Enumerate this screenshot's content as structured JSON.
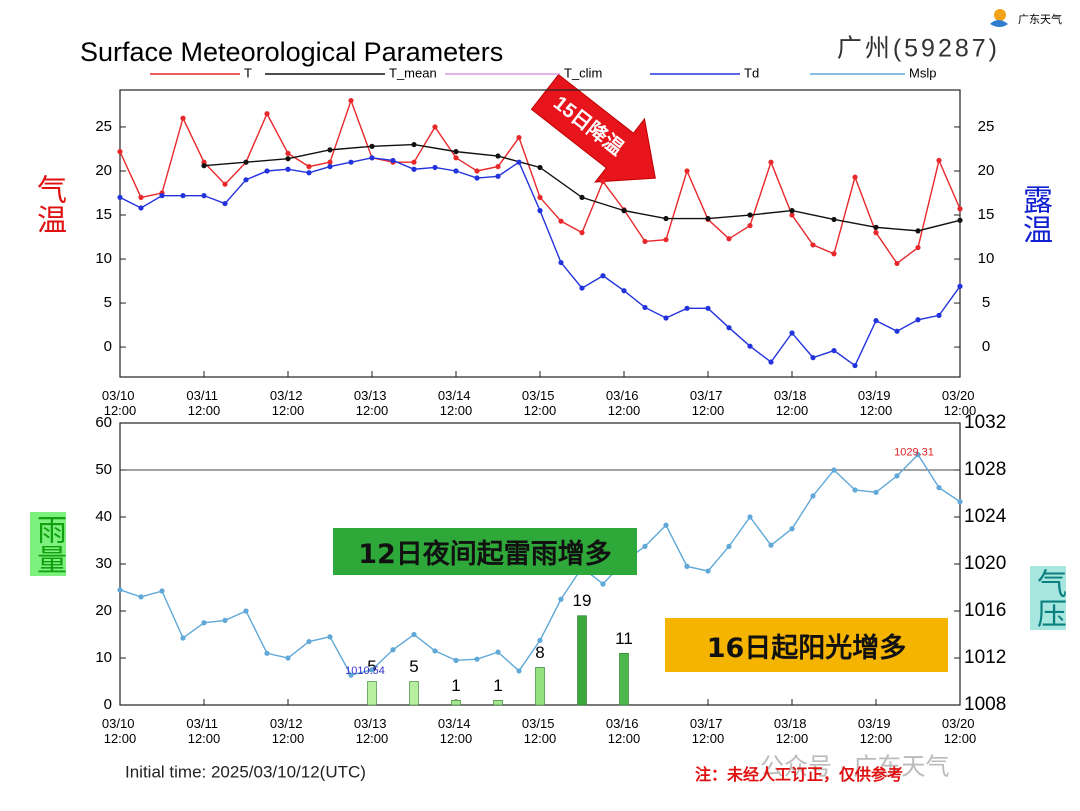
{
  "title": "Surface Meteorological Parameters",
  "station": "广州(59287)",
  "logo": "广东天气",
  "initial_time": "Initial time: 2025/03/10/12(UTC)",
  "note": "注：未经人工订正，仅供参考",
  "watermark": "公众号 · 广东天气",
  "callouts": [
    "15日降温",
    "12日夜间起雷雨增多",
    "16日起阳光增多"
  ],
  "chart_data": [
    {
      "type": "line",
      "ylabel": "气温",
      "y2label": "露温",
      "xlim": [
        "03/10 12:00",
        "03/20 12:00"
      ],
      "xticks": [
        "03/10 12:00",
        "03/11 12:00",
        "03/12 12:00",
        "03/13 12:00",
        "03/14 12:00",
        "03/15 12:00",
        "03/16 12:00",
        "03/17 12:00",
        "03/18 12:00",
        "03/19 12:00",
        "03/20 12:00"
      ],
      "ylim": [
        -3.4,
        29.2
      ],
      "yticks": [
        0,
        5,
        10,
        15,
        20,
        25
      ],
      "y2lim": [
        -3.4,
        29.2
      ],
      "y2ticks": [
        0,
        5,
        10,
        15,
        20,
        25
      ],
      "series": [
        {
          "name": "T",
          "color": "#e8282b",
          "x": [
            "03/10 12:00",
            "03/10 18:00",
            "03/11 00:00",
            "03/11 06:00",
            "03/11 12:00",
            "03/11 18:00",
            "03/12 00:00",
            "03/12 06:00",
            "03/12 12:00",
            "03/12 18:00",
            "03/13 00:00",
            "03/13 06:00",
            "03/13 12:00",
            "03/13 18:00",
            "03/14 00:00",
            "03/14 06:00",
            "03/14 12:00",
            "03/14 18:00",
            "03/15 00:00",
            "03/15 06:00",
            "03/15 12:00",
            "03/15 18:00",
            "03/16 00:00",
            "03/16 06:00",
            "03/16 12:00",
            "03/16 18:00",
            "03/17 00:00",
            "03/17 06:00",
            "03/17 12:00",
            "03/17 18:00",
            "03/18 00:00",
            "03/18 06:00",
            "03/18 12:00",
            "03/18 18:00",
            "03/19 00:00",
            "03/19 06:00",
            "03/19 12:00",
            "03/19 18:00",
            "03/20 00:00",
            "03/20 06:00",
            "03/20 12:00"
          ],
          "values": [
            22.2,
            17,
            17.5,
            26,
            21,
            18.5,
            21,
            26.5,
            22,
            20.5,
            21,
            28,
            21.5,
            21,
            21,
            25,
            21.5,
            20,
            20.5,
            23.8,
            17,
            14.3,
            13,
            18.8,
            15.6,
            12,
            12.2,
            20,
            14.5,
            12.3,
            13.8,
            21,
            15,
            11.6,
            10.6,
            19.3,
            13,
            9.5,
            11.3,
            21.2,
            15.7
          ]
        },
        {
          "name": "T_mean",
          "color": "#111111",
          "x": [
            "03/11 12:00",
            "03/12 00:00",
            "03/12 12:00",
            "03/13 00:00",
            "03/13 12:00",
            "03/14 00:00",
            "03/14 12:00",
            "03/15 00:00",
            "03/15 12:00",
            "03/16 00:00",
            "03/16 12:00",
            "03/17 00:00",
            "03/17 12:00",
            "03/18 00:00",
            "03/18 12:00",
            "03/19 00:00",
            "03/19 12:00",
            "03/20 00:00",
            "03/20 12:00"
          ],
          "values": [
            20.6,
            21,
            21.4,
            22.4,
            22.8,
            23,
            22.2,
            21.7,
            20.4,
            17,
            15.5,
            14.6,
            14.6,
            15,
            15.5,
            14.5,
            13.6,
            13.2,
            14.4
          ]
        },
        {
          "name": "T_clim",
          "color": "#d99be0",
          "x": [],
          "values": []
        },
        {
          "name": "Td",
          "color": "#2233dd",
          "axis": "y2",
          "x": [
            "03/10 12:00",
            "03/10 18:00",
            "03/11 00:00",
            "03/11 06:00",
            "03/11 12:00",
            "03/11 18:00",
            "03/12 00:00",
            "03/12 06:00",
            "03/12 12:00",
            "03/12 18:00",
            "03/13 00:00",
            "03/13 06:00",
            "03/13 12:00",
            "03/13 18:00",
            "03/14 00:00",
            "03/14 06:00",
            "03/14 12:00",
            "03/14 18:00",
            "03/15 00:00",
            "03/15 06:00",
            "03/15 12:00",
            "03/15 18:00",
            "03/16 00:00",
            "03/16 06:00",
            "03/16 12:00",
            "03/16 18:00",
            "03/17 00:00",
            "03/17 06:00",
            "03/17 12:00",
            "03/17 18:00",
            "03/18 00:00",
            "03/18 06:00",
            "03/18 12:00",
            "03/18 18:00",
            "03/19 00:00",
            "03/19 06:00",
            "03/19 12:00",
            "03/19 18:00",
            "03/20 00:00",
            "03/20 06:00",
            "03/20 12:00"
          ],
          "values": [
            17,
            15.8,
            17.2,
            17.2,
            17.2,
            16.3,
            19,
            20,
            20.2,
            19.8,
            20.5,
            21,
            21.5,
            21.2,
            20.2,
            20.4,
            20,
            19.2,
            19.4,
            21,
            15.5,
            9.6,
            6.7,
            8.1,
            6.4,
            4.5,
            3.3,
            4.4,
            4.4,
            2.2,
            0.1,
            -1.7,
            1.6,
            -1.2,
            -0.4,
            -2.1,
            3,
            1.8,
            3.1,
            3.6,
            6.9
          ]
        }
      ]
    },
    {
      "type": "bar",
      "ylabel": "雨量",
      "y2label": "气压",
      "xlim": [
        "03/10 12:00",
        "03/20 12:00"
      ],
      "xticks": [
        "03/10 12:00",
        "03/11 12:00",
        "03/12 12:00",
        "03/13 12:00",
        "03/14 12:00",
        "03/15 12:00",
        "03/16 12:00",
        "03/17 12:00",
        "03/18 12:00",
        "03/19 12:00",
        "03/20 12:00"
      ],
      "ylim": [
        0,
        60
      ],
      "yticks": [
        0,
        10,
        20,
        30,
        40,
        50,
        60
      ],
      "y2lim": [
        1008,
        1032
      ],
      "y2ticks": [
        1008,
        1012,
        1016,
        1020,
        1024,
        1028,
        1032
      ],
      "series": [
        {
          "x": [
            "03/13 12:00",
            "03/14 00:00",
            "03/14 12:00",
            "03/15 00:00",
            "03/15 12:00",
            "03/16 00:00",
            "03/16 12:00"
          ],
          "values": [
            5,
            5,
            1,
            1,
            8,
            19,
            11
          ],
          "colors": [
            "#b8ef9f",
            "#b8ef9f",
            "#a6e88f",
            "#a6e88f",
            "#93e07f",
            "#3aa83a",
            "#4db84d"
          ]
        },
        {
          "name": "Mslp",
          "type": "line",
          "axis": "y2",
          "color": "#5fa8d8",
          "label_extremes": true,
          "x": [
            "03/10 12:00",
            "03/10 18:00",
            "03/11 00:00",
            "03/11 06:00",
            "03/11 12:00",
            "03/11 18:00",
            "03/12 00:00",
            "03/12 06:00",
            "03/12 12:00",
            "03/12 18:00",
            "03/13 00:00",
            "03/13 06:00",
            "03/13 12:00",
            "03/13 18:00",
            "03/14 00:00",
            "03/14 06:00",
            "03/14 12:00",
            "03/14 18:00",
            "03/15 00:00",
            "03/15 06:00",
            "03/15 12:00",
            "03/15 18:00",
            "03/16 00:00",
            "03/16 06:00",
            "03/16 12:00",
            "03/16 18:00",
            "03/17 00:00",
            "03/17 06:00",
            "03/17 12:00",
            "03/17 18:00",
            "03/18 00:00",
            "03/18 06:00",
            "03/18 12:00",
            "03/18 18:00",
            "03/19 00:00",
            "03/19 06:00",
            "03/19 12:00",
            "03/19 18:00",
            "03/20 00:00",
            "03/20 06:00",
            "03/20 12:00"
          ],
          "values": [
            1017.8,
            1017.2,
            1017.7,
            1013.7,
            1015,
            1015.2,
            1016,
            1012.4,
            1012,
            1013.4,
            1013.8,
            1010.54,
            1011,
            1012.7,
            1014,
            1012.6,
            1011.8,
            1011.9,
            1012.5,
            1010.9,
            1013.5,
            1017,
            1019.7,
            1018.3,
            1020.2,
            1021.5,
            1023.3,
            1019.8,
            1019.4,
            1021.5,
            1024,
            1021.6,
            1023,
            1025.8,
            1028,
            1026.3,
            1026.1,
            1027.5,
            1029.31,
            1026.5,
            1025.3
          ]
        }
      ]
    }
  ]
}
